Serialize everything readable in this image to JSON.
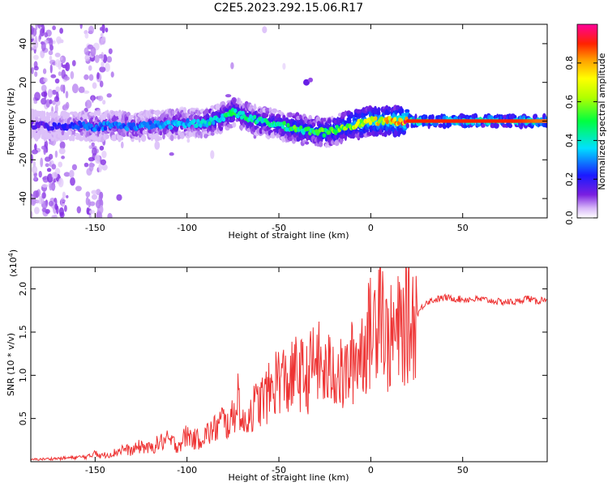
{
  "figure": {
    "title": "C2E5.2023.292.15.06.R17"
  },
  "chart_data": [
    {
      "type": "heatmap",
      "xlabel": "Height of straight line (km)",
      "ylabel": "Frequency (Hz)",
      "xlim": [
        -185,
        96
      ],
      "ylim": [
        -50,
        50
      ],
      "xticks": [
        "-150",
        "-100",
        "-50",
        "0",
        "50"
      ],
      "xtick_values": [
        -150,
        -100,
        -50,
        0,
        50
      ],
      "yticks": [
        "-40",
        "-20",
        "0",
        "20",
        "40"
      ],
      "ytick_values": [
        -40,
        -20,
        0,
        20,
        40
      ],
      "grid": false,
      "colorbar": {
        "label": "Normalized spectral amplitude",
        "range": [
          0,
          1
        ],
        "ticks": [
          "0.0",
          "0.2",
          "0.4",
          "0.6",
          "0.8"
        ],
        "tick_values": [
          0.0,
          0.2,
          0.4,
          0.6,
          0.8
        ],
        "colormap": "rainbow (purple to magenta)"
      },
      "ridge": {
        "x": [
          -185,
          -170,
          -160,
          -150,
          -140,
          -130,
          -120,
          -110,
          -100,
          -90,
          -80,
          -75,
          -70,
          -65,
          -60,
          -55,
          -50,
          -45,
          -40,
          -35,
          -30,
          -25,
          -20,
          -15,
          -10,
          -5,
          0,
          5,
          10,
          15,
          20,
          30,
          40,
          50,
          60,
          70,
          80,
          90,
          96
        ],
        "y": [
          -2,
          -3,
          -2,
          -3,
          -2,
          -3,
          -2,
          -2,
          -1,
          -1,
          2,
          5,
          3,
          1,
          0,
          -1,
          -2,
          -3,
          -4,
          -5,
          -5,
          -6,
          -5,
          -3,
          -2,
          -1,
          0,
          0,
          0,
          0,
          0,
          0,
          0,
          0,
          0,
          0,
          0,
          0,
          0
        ],
        "amplitude": [
          0.15,
          0.2,
          0.25,
          0.3,
          0.3,
          0.3,
          0.3,
          0.35,
          0.35,
          0.4,
          0.45,
          0.5,
          0.45,
          0.45,
          0.45,
          0.45,
          0.45,
          0.5,
          0.55,
          0.5,
          0.5,
          0.55,
          0.55,
          0.6,
          0.65,
          0.7,
          0.75,
          0.75,
          0.8,
          0.85,
          0.9,
          0.9,
          0.9,
          0.9,
          0.9,
          0.9,
          0.9,
          0.85,
          0.85
        ]
      },
      "secondary_feature": {
        "x": -35,
        "y": 20
      }
    },
    {
      "type": "line",
      "xlabel": "Height of straight line (km)",
      "ylabel": "SNR (10 * v/v)",
      "y_multiplier_label": "(x10",
      "y_multiplier_exp": "4",
      "y_multiplier_close": ")",
      "xlim": [
        -185,
        96
      ],
      "ylim": [
        0,
        2.25
      ],
      "xticks": [
        "-150",
        "-100",
        "-50",
        "0",
        "50"
      ],
      "xtick_values": [
        -150,
        -100,
        -50,
        0,
        50
      ],
      "yticks": [
        "0.5",
        "1.0",
        "1.5",
        "2.0"
      ],
      "ytick_values": [
        0.5,
        1.0,
        1.5,
        2.0
      ],
      "grid": false,
      "series": [
        {
          "color": "#ee3333",
          "x": [
            -185,
            -170,
            -160,
            -152,
            -150,
            -148,
            -140,
            -135,
            -130,
            -125,
            -120,
            -115,
            -110,
            -105,
            -100,
            -95,
            -90,
            -85,
            -80,
            -75,
            -72,
            -70,
            -65,
            -60,
            -55,
            -50,
            -45,
            -40,
            -35,
            -30,
            -25,
            -20,
            -15,
            -10,
            -5,
            0,
            3,
            5,
            8,
            10,
            15,
            20,
            25,
            30,
            40,
            50,
            60,
            70,
            80,
            85,
            90,
            96
          ],
          "y": [
            0.02,
            0.03,
            0.04,
            0.05,
            0.12,
            0.05,
            0.08,
            0.12,
            0.1,
            0.15,
            0.12,
            0.18,
            0.2,
            0.15,
            0.25,
            0.2,
            0.25,
            0.3,
            0.4,
            0.5,
            0.8,
            0.4,
            0.6,
            0.7,
            0.8,
            1.0,
            0.9,
            1.05,
            0.95,
            1.2,
            1.0,
            1.1,
            0.95,
            1.15,
            1.3,
            1.5,
            1.65,
            2.2,
            1.4,
            1.4,
            1.5,
            1.6,
            1.7,
            1.85,
            1.9,
            1.88,
            1.88,
            1.85,
            1.85,
            1.9,
            1.85,
            1.9
          ]
        }
      ]
    }
  ]
}
